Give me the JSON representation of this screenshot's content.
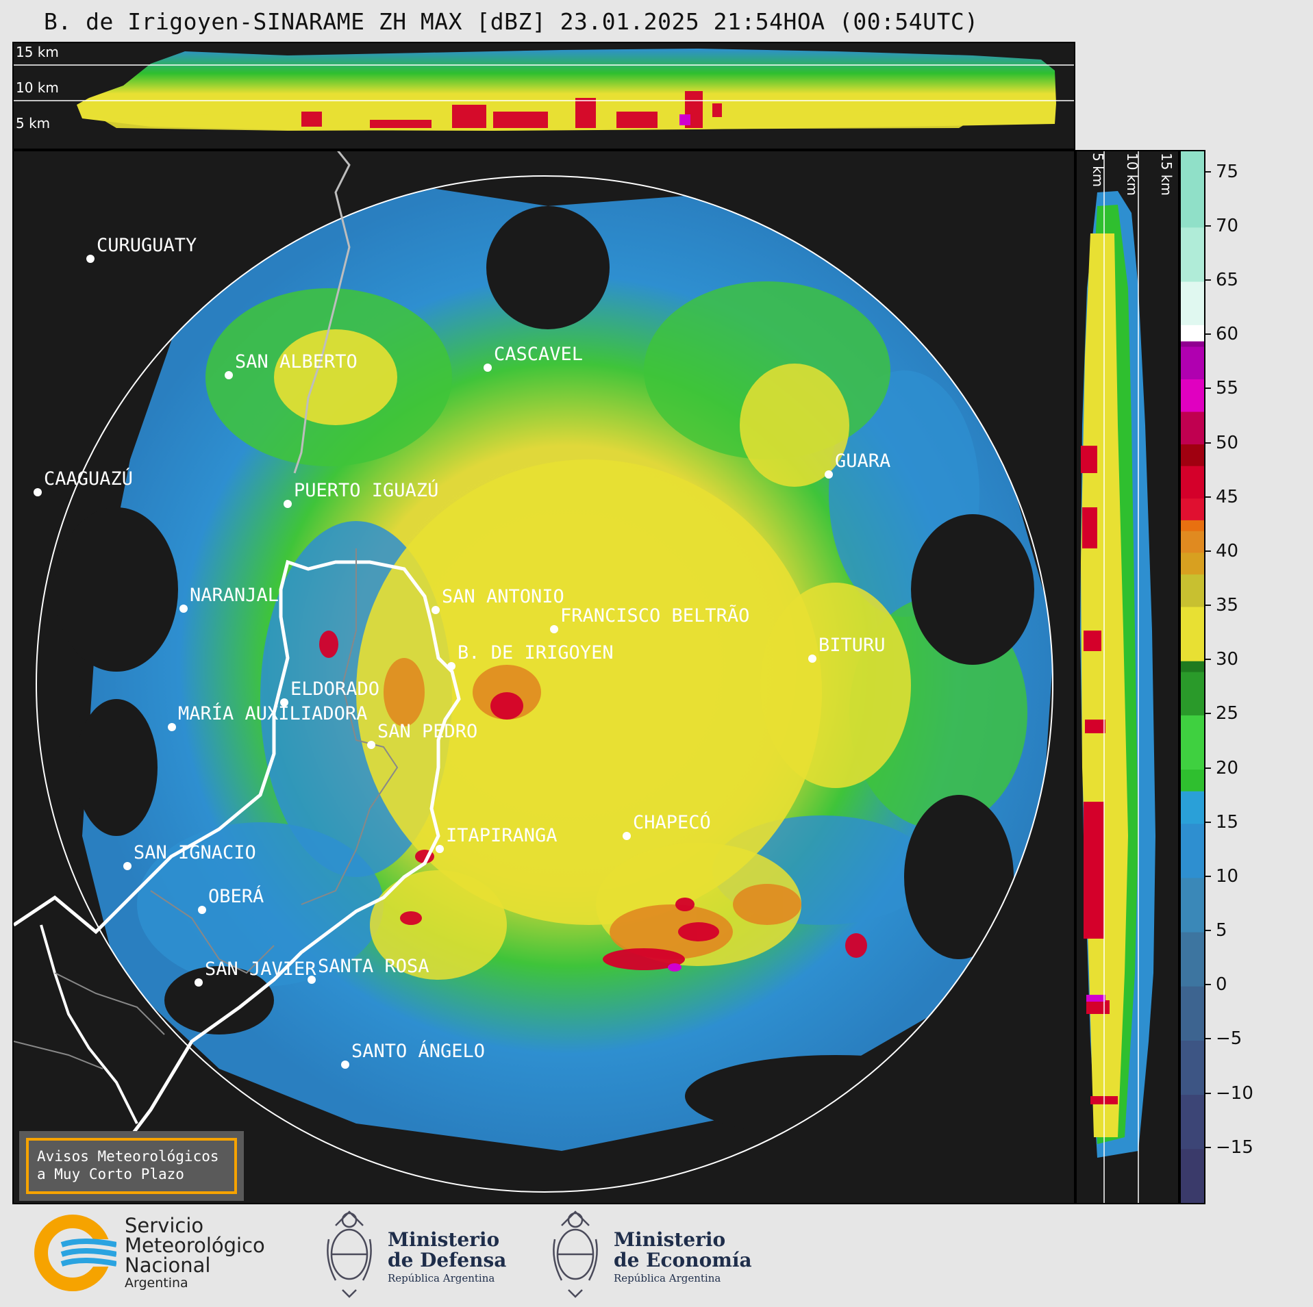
{
  "title": "B. de Irigoyen-SINARAME ZH MAX [dBZ] 23.01.2025 21:54HOA (00:54UTC)",
  "top_profile": {
    "altitude_labels": [
      "15 km",
      "10 km",
      "5 km"
    ]
  },
  "side_profile": {
    "altitude_labels": [
      "5 km",
      "10 km",
      "15 km"
    ]
  },
  "cities": [
    {
      "name": "CURUGUATY"
    },
    {
      "name": "SAN ALBERTO"
    },
    {
      "name": "CASCAVEL"
    },
    {
      "name": "CAAGUAZÚ"
    },
    {
      "name": "GUARA"
    },
    {
      "name": "PUERTO IGUAZÚ"
    },
    {
      "name": "NARANJAL"
    },
    {
      "name": "SAN ANTONIO"
    },
    {
      "name": "FRANCISCO BELTRÃO"
    },
    {
      "name": "B. DE IRIGOYEN"
    },
    {
      "name": "BITURU"
    },
    {
      "name": "ELDORADO"
    },
    {
      "name": "MARÍA AUXILIADORA"
    },
    {
      "name": "SAN PEDRO"
    },
    {
      "name": "CHAPECÓ"
    },
    {
      "name": "ITAPIRANGA"
    },
    {
      "name": "SAN IGNACIO"
    },
    {
      "name": "OBERÁ"
    },
    {
      "name": "SAN JAVIER"
    },
    {
      "name": "SANTA ROSA"
    },
    {
      "name": "SANTO ÁNGELO"
    }
  ],
  "colorbar": {
    "min": -20,
    "max": 77,
    "ticks": [
      "75",
      "70",
      "65",
      "60",
      "55",
      "50",
      "45",
      "40",
      "35",
      "30",
      "25",
      "20",
      "15",
      "10",
      "5",
      "0",
      "−5",
      "−10",
      "−15"
    ],
    "tick_values": [
      75,
      70,
      65,
      60,
      55,
      50,
      45,
      40,
      35,
      30,
      25,
      20,
      15,
      10,
      5,
      0,
      -5,
      -10,
      -15
    ]
  },
  "avisos": {
    "line1": "Avisos Meteorológicos",
    "line2": "a Muy Corto Plazo"
  },
  "footer": {
    "smn_line1": "Servicio",
    "smn_line2": "Meteorológico",
    "smn_line3": "Nacional",
    "smn_line4": "Argentina",
    "defensa_line1": "Ministerio",
    "defensa_line2": "de Defensa",
    "defensa_line3": "República Argentina",
    "economia_line1": "Ministerio",
    "economia_line2": "de Economía",
    "economia_line3": "República Argentina"
  },
  "colors": {
    "background": "#1a1a1a",
    "blue": "#2e8fd0",
    "green": "#2fbf2f",
    "yellow": "#e8e033",
    "orange": "#e08a20",
    "red": "#d4002a",
    "magenta": "#d000d0",
    "smn_orange": "#f6a300",
    "smn_blue": "#2aa3e0"
  }
}
